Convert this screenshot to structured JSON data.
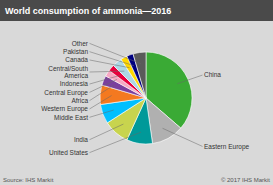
{
  "chart_data": {
    "type": "pie",
    "title": "World consumption of ammonia—2016",
    "categories": [
      "China",
      "Eastern Europe",
      "United States",
      "India",
      "Middle East",
      "Western Europe",
      "Africa",
      "Central Europe",
      "Indonesia",
      "Central/South\nAmerica",
      "Canada",
      "Pakistan",
      "Other"
    ],
    "values": [
      32,
      10,
      8,
      8,
      6,
      6,
      3,
      2,
      2,
      3,
      2,
      2,
      4
    ],
    "colors": [
      "#3aaa35",
      "#b0b0b0",
      "#009999",
      "#c8d44e",
      "#00bfff",
      "#f47920",
      "#7b3f9e",
      "#f7a8c4",
      "#e8003d",
      "#add8e6",
      "#ffd700",
      "#000080",
      "#5a5a5a"
    ],
    "annotations": [
      "Source: IHS Markit",
      "© 2017 IHS Markit"
    ]
  }
}
